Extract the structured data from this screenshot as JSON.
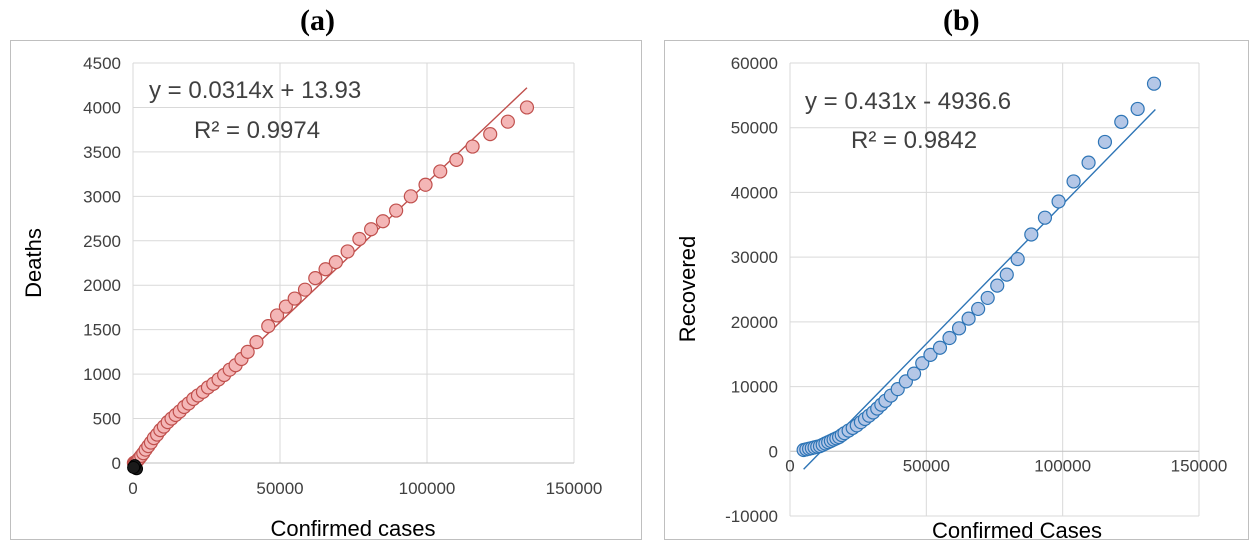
{
  "panels": [
    {
      "label": "(a)"
    },
    {
      "label": "(b)"
    }
  ],
  "chart_data": [
    {
      "type": "scatter",
      "title": "(a)",
      "xlabel": "Confirmed cases",
      "ylabel": "Deaths",
      "xlim": [
        0,
        150000
      ],
      "ylim": [
        0,
        4500
      ],
      "xticks": [
        "0",
        "50000",
        "100000",
        "150000"
      ],
      "yticks": [
        "0",
        "500",
        "1000",
        "1500",
        "2000",
        "2500",
        "3000",
        "3500",
        "4000",
        "4500"
      ],
      "grid": true,
      "colors": {
        "marker_fill": "#f4b6b6",
        "marker_stroke": "#c0504d",
        "trendline": "#c0504d"
      },
      "trendline": {
        "slope": 0.0314,
        "intercept": 13.93,
        "x_range": [
          0,
          134000
        ]
      },
      "annotations": {
        "equation": "y = 0.0314x + 13.93",
        "r2": "R² = 0.9974"
      },
      "series": [
        {
          "x": [
            300,
            600,
            900,
            1300,
            1700,
            2200,
            2800,
            3500,
            4300,
            5200,
            6100,
            7100,
            8200,
            9300,
            10500,
            11800,
            13100,
            14500,
            15900,
            17400,
            18900,
            20500,
            22100,
            23800,
            25500,
            27300,
            29100,
            31000,
            32900,
            34900,
            36900,
            39000,
            42000,
            46000,
            49000,
            52000,
            55000,
            58500,
            62000,
            65500,
            69000,
            73000,
            77000,
            81000,
            85000,
            89500,
            94500,
            99500,
            104500,
            110000,
            115500,
            121500,
            127500,
            134000
          ],
          "y": [
            0,
            5,
            12,
            20,
            35,
            55,
            80,
            110,
            150,
            190,
            230,
            280,
            320,
            370,
            410,
            460,
            500,
            540,
            580,
            630,
            670,
            720,
            760,
            800,
            850,
            890,
            940,
            990,
            1050,
            1100,
            1170,
            1250,
            1360,
            1540,
            1660,
            1760,
            1850,
            1950,
            2080,
            2180,
            2260,
            2380,
            2520,
            2630,
            2720,
            2840,
            3000,
            3130,
            3280,
            3410,
            3560,
            3700,
            3840,
            4000
          ]
        }
      ]
    },
    {
      "type": "scatter",
      "title": "(b)",
      "xlabel": "Confirmed Cases",
      "ylabel": "Recovered",
      "xlim": [
        0,
        150000
      ],
      "ylim": [
        -10000,
        60000
      ],
      "xticks": [
        "0",
        "50000",
        "100000",
        "150000"
      ],
      "yticks": [
        "-10000",
        "0",
        "10000",
        "20000",
        "30000",
        "40000",
        "50000",
        "60000"
      ],
      "grid": true,
      "colors": {
        "marker_fill": "#b4c7e7",
        "marker_stroke": "#2e75b6",
        "trendline": "#2e75b6"
      },
      "trendline": {
        "slope": 0.431,
        "intercept": -4936.6,
        "x_range": [
          5000,
          134000
        ]
      },
      "annotations": {
        "equation": "y = 0.431x - 4936.6",
        "r2": "R² = 0.9842"
      },
      "series": [
        {
          "x": [
            5000,
            6000,
            7000,
            8000,
            9000,
            10000,
            11000,
            12000,
            13000,
            14000,
            15000,
            16000,
            17000,
            18000,
            19000,
            20000,
            21500,
            23000,
            24500,
            26000,
            27500,
            29000,
            30500,
            32000,
            33500,
            35000,
            37000,
            39500,
            42500,
            45500,
            48500,
            51500,
            55000,
            58500,
            62000,
            65500,
            69000,
            72500,
            76000,
            79500,
            83500,
            88500,
            93500,
            98500,
            104000,
            109500,
            115500,
            121500,
            127500,
            133500
          ],
          "y": [
            200,
            300,
            400,
            500,
            600,
            700,
            800,
            1000,
            1200,
            1400,
            1600,
            1800,
            2000,
            2200,
            2500,
            2800,
            3200,
            3600,
            4000,
            4500,
            5000,
            5500,
            6000,
            6600,
            7200,
            7800,
            8600,
            9600,
            10800,
            12000,
            13600,
            14900,
            16000,
            17500,
            19000,
            20500,
            22000,
            23700,
            25600,
            27300,
            29700,
            33500,
            36100,
            38600,
            41700,
            44600,
            47800,
            50900,
            52900,
            56800
          ]
        }
      ]
    }
  ]
}
